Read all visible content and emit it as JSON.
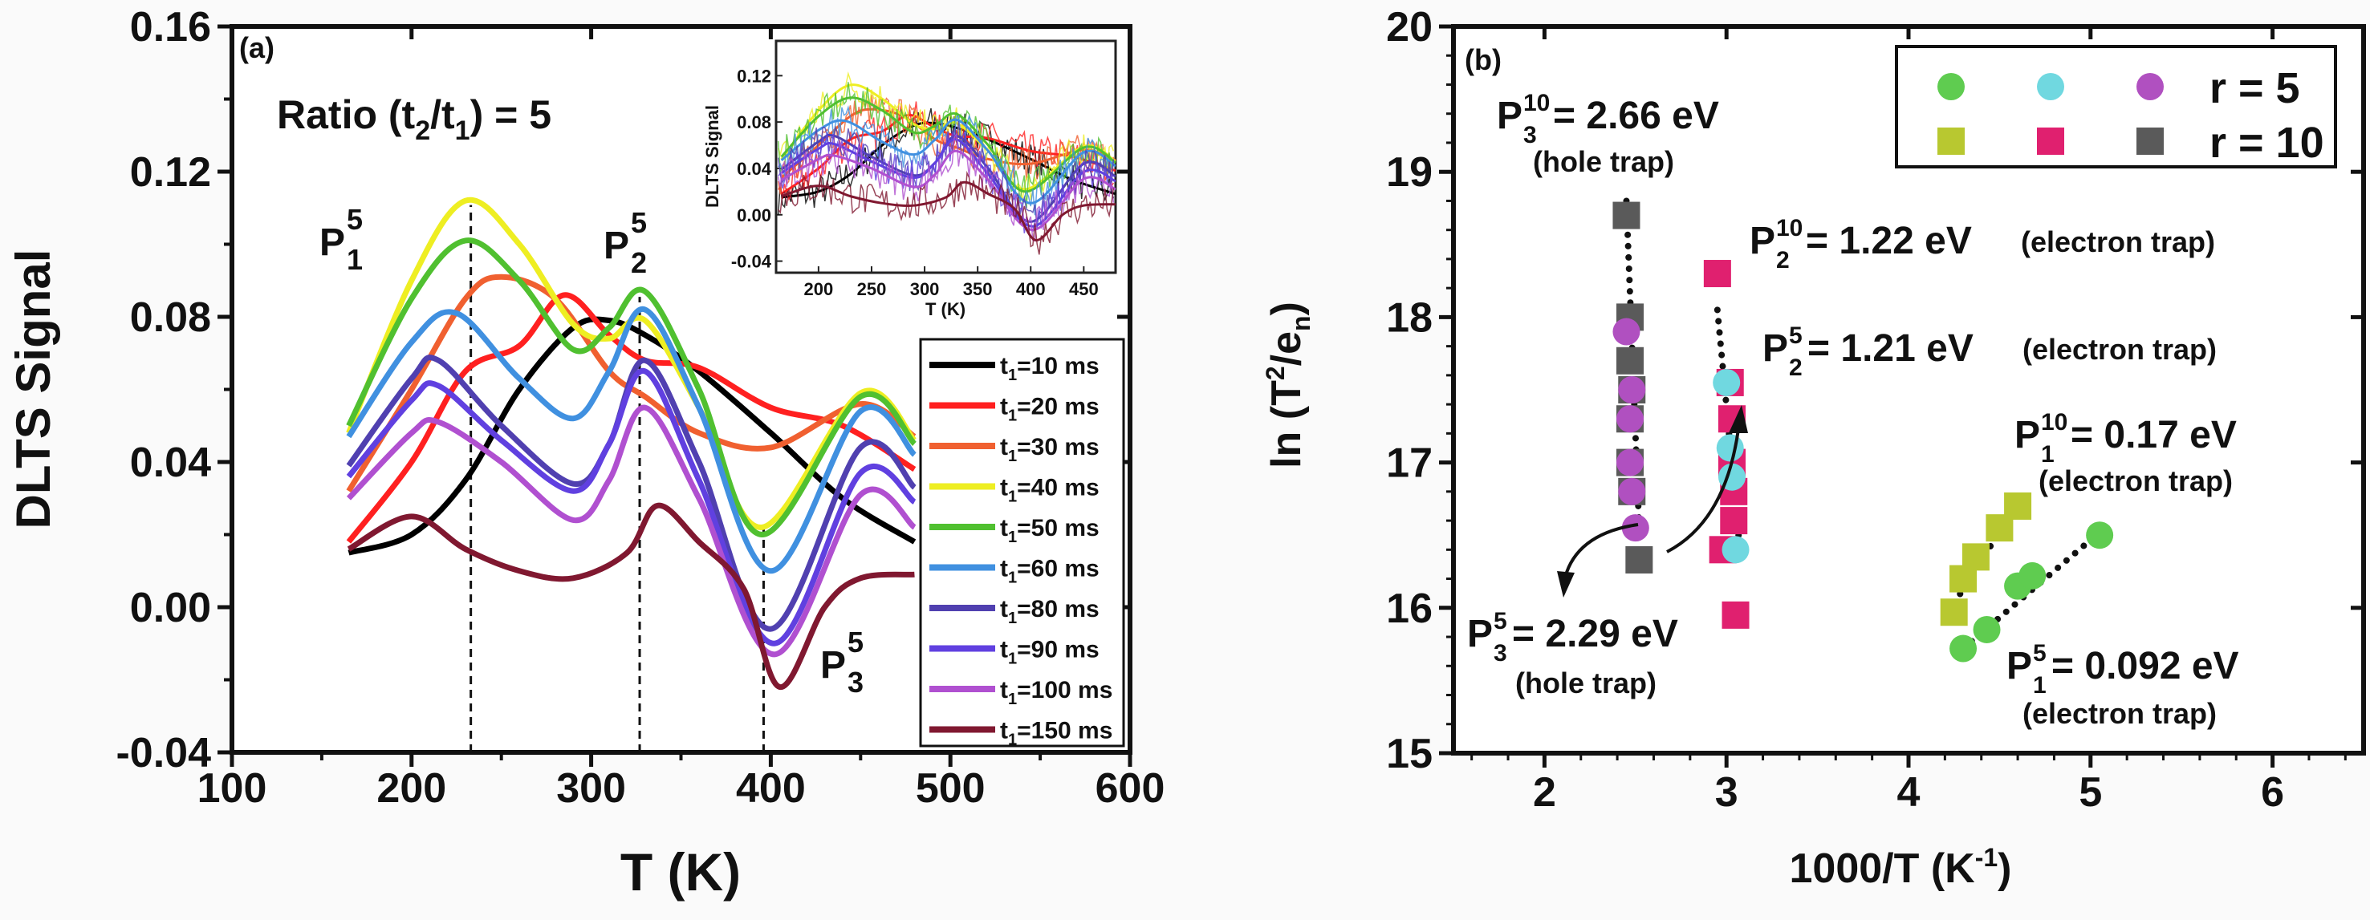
{
  "chart_data": [
    {
      "panel": "(a)",
      "type": "line",
      "xlabel": "T (K)",
      "ylabel": "DLTS Signal",
      "xlim": [
        100,
        600
      ],
      "ylim": [
        -0.04,
        0.16
      ],
      "xticks": [
        100,
        200,
        300,
        400,
        500,
        600
      ],
      "yticks": [
        "-0.04",
        "0.00",
        "0.04",
        "0.08",
        "0.12",
        "0.16"
      ],
      "annotation_ratio": {
        "prefix": "Ratio (t",
        "s1": "2",
        "mid": "/t",
        "s2": "1",
        "suffix": ") = 5"
      },
      "peak_labels": [
        {
          "base": "P",
          "sub": "1",
          "sup": "5"
        },
        {
          "base": "P",
          "sub": "2",
          "sup": "5"
        },
        {
          "base": "P",
          "sub": "3",
          "sup": "5"
        }
      ],
      "dashed_markers_T": [
        233,
        327,
        396
      ],
      "legend_position": "right",
      "series": [
        {
          "name": "t1=10 ms",
          "color": "#000000",
          "points": [
            [
              165,
              0.015
            ],
            [
              200,
              0.02
            ],
            [
              230,
              0.035
            ],
            [
              260,
              0.06
            ],
            [
              290,
              0.077
            ],
            [
              310,
              0.079
            ],
            [
              330,
              0.075
            ],
            [
              360,
              0.065
            ],
            [
              400,
              0.048
            ],
            [
              440,
              0.03
            ],
            [
              480,
              0.018
            ]
          ]
        },
        {
          "name": "t1=20 ms",
          "color": "#ff2020",
          "points": [
            [
              165,
              0.018
            ],
            [
              200,
              0.04
            ],
            [
              230,
              0.065
            ],
            [
              260,
              0.072
            ],
            [
              285,
              0.086
            ],
            [
              310,
              0.075
            ],
            [
              330,
              0.068
            ],
            [
              360,
              0.066
            ],
            [
              400,
              0.055
            ],
            [
              440,
              0.05
            ],
            [
              480,
              0.038
            ]
          ]
        },
        {
          "name": "t1=30 ms",
          "color": "#f06030",
          "points": [
            [
              165,
              0.032
            ],
            [
              200,
              0.06
            ],
            [
              230,
              0.085
            ],
            [
              250,
              0.091
            ],
            [
              280,
              0.085
            ],
            [
              310,
              0.065
            ],
            [
              330,
              0.058
            ],
            [
              360,
              0.048
            ],
            [
              400,
              0.044
            ],
            [
              450,
              0.056
            ],
            [
              480,
              0.047
            ]
          ]
        },
        {
          "name": "t1=40 ms",
          "color": "#eeee22",
          "points": [
            [
              165,
              0.048
            ],
            [
              200,
              0.09
            ],
            [
              230,
              0.112
            ],
            [
              260,
              0.1
            ],
            [
              290,
              0.078
            ],
            [
              310,
              0.074
            ],
            [
              330,
              0.079
            ],
            [
              360,
              0.055
            ],
            [
              395,
              0.022
            ],
            [
              450,
              0.059
            ],
            [
              480,
              0.046
            ]
          ]
        },
        {
          "name": "t1=50 ms",
          "color": "#50c030",
          "points": [
            [
              165,
              0.05
            ],
            [
              200,
              0.085
            ],
            [
              230,
              0.101
            ],
            [
              260,
              0.09
            ],
            [
              290,
              0.071
            ],
            [
              310,
              0.077
            ],
            [
              330,
              0.087
            ],
            [
              360,
              0.06
            ],
            [
              395,
              0.02
            ],
            [
              450,
              0.058
            ],
            [
              480,
              0.045
            ]
          ]
        },
        {
          "name": "t1=60 ms",
          "color": "#4090e0",
          "points": [
            [
              165,
              0.047
            ],
            [
              200,
              0.073
            ],
            [
              225,
              0.081
            ],
            [
              260,
              0.063
            ],
            [
              290,
              0.052
            ],
            [
              310,
              0.065
            ],
            [
              330,
              0.082
            ],
            [
              360,
              0.055
            ],
            [
              400,
              0.01
            ],
            [
              450,
              0.054
            ],
            [
              480,
              0.042
            ]
          ]
        },
        {
          "name": "t1=80 ms",
          "color": "#5040b0",
          "points": [
            [
              165,
              0.039
            ],
            [
              200,
              0.063
            ],
            [
              215,
              0.068
            ],
            [
              250,
              0.05
            ],
            [
              290,
              0.034
            ],
            [
              310,
              0.045
            ],
            [
              330,
              0.068
            ],
            [
              360,
              0.04
            ],
            [
              400,
              -0.006
            ],
            [
              450,
              0.044
            ],
            [
              480,
              0.033
            ]
          ]
        },
        {
          "name": "t1=90 ms",
          "color": "#6040e0",
          "points": [
            [
              165,
              0.036
            ],
            [
              200,
              0.057
            ],
            [
              215,
              0.061
            ],
            [
              250,
              0.046
            ],
            [
              290,
              0.032
            ],
            [
              310,
              0.045
            ],
            [
              330,
              0.065
            ],
            [
              360,
              0.035
            ],
            [
              402,
              -0.01
            ],
            [
              450,
              0.037
            ],
            [
              480,
              0.029
            ]
          ]
        },
        {
          "name": "t1=100 ms",
          "color": "#b050d0",
          "points": [
            [
              165,
              0.03
            ],
            [
              200,
              0.048
            ],
            [
              215,
              0.051
            ],
            [
              250,
              0.04
            ],
            [
              290,
              0.024
            ],
            [
              310,
              0.035
            ],
            [
              330,
              0.055
            ],
            [
              360,
              0.03
            ],
            [
              402,
              -0.013
            ],
            [
              450,
              0.031
            ],
            [
              480,
              0.022
            ]
          ]
        },
        {
          "name": "t1=150 ms",
          "color": "#801830",
          "points": [
            [
              165,
              0.016
            ],
            [
              200,
              0.025
            ],
            [
              230,
              0.016
            ],
            [
              260,
              0.01
            ],
            [
              290,
              0.008
            ],
            [
              320,
              0.015
            ],
            [
              337,
              0.028
            ],
            [
              360,
              0.018
            ],
            [
              385,
              0.005
            ],
            [
              405,
              -0.022
            ],
            [
              430,
              0.0
            ],
            [
              450,
              0.008
            ],
            [
              480,
              0.009
            ]
          ]
        }
      ],
      "inset": {
        "type": "line",
        "xlabel": "T (K)",
        "ylabel": "DLTS Signal",
        "xlim": [
          160,
          480
        ],
        "ylim": [
          -0.05,
          0.15
        ],
        "xticks": [
          200,
          250,
          300,
          350,
          400,
          450
        ],
        "yticks": [
          "-0.04",
          "0.00",
          "0.04",
          "0.08",
          "0.12"
        ]
      }
    },
    {
      "panel": "(b)",
      "type": "scatter",
      "xlabel": "1000/T (K-1)",
      "ylabel": "ln (T2/en)",
      "xlim": [
        1.5,
        6.5
      ],
      "ylim": [
        15,
        20
      ],
      "xticks": [
        2,
        3,
        4,
        5,
        6
      ],
      "yticks": [
        15,
        16,
        17,
        18,
        19,
        20
      ],
      "legend_position": "top-right",
      "legend": [
        {
          "label": "r = 5",
          "markers": [
            "#5fcc50",
            "#70d8e0",
            "#b050c0"
          ],
          "shape": "circle"
        },
        {
          "label": "r = 10",
          "markers": [
            "#b8c830",
            "#e0206f",
            "#5a5a5a"
          ],
          "shape": "square"
        }
      ],
      "series": [
        {
          "group": "r = 5",
          "peak": "P1",
          "shape": "circle",
          "color": "#5fcc50",
          "points": [
            [
              4.3,
              15.72
            ],
            [
              4.43,
              15.85
            ],
            [
              4.6,
              16.15
            ],
            [
              4.68,
              16.22
            ],
            [
              5.05,
              16.5
            ]
          ]
        },
        {
          "group": "r = 5",
          "peak": "P2",
          "shape": "circle",
          "color": "#70d8e0",
          "points": [
            [
              3.0,
              17.55
            ],
            [
              3.02,
              17.1
            ],
            [
              3.03,
              16.9
            ],
            [
              3.05,
              16.4
            ]
          ]
        },
        {
          "group": "r = 5",
          "peak": "P3",
          "shape": "circle",
          "color": "#b050c0",
          "points": [
            [
              2.5,
              16.55
            ],
            [
              2.48,
              16.8
            ],
            [
              2.47,
              17.0
            ],
            [
              2.47,
              17.3
            ],
            [
              2.48,
              17.5
            ],
            [
              2.45,
              17.9
            ]
          ]
        },
        {
          "group": "r = 10",
          "peak": "P1",
          "shape": "square",
          "color": "#b8c830",
          "points": [
            [
              4.25,
              15.97
            ],
            [
              4.3,
              16.2
            ],
            [
              4.37,
              16.35
            ],
            [
              4.5,
              16.55
            ],
            [
              4.6,
              16.7
            ]
          ]
        },
        {
          "group": "r = 10",
          "peak": "P2",
          "shape": "square",
          "color": "#e0206f",
          "points": [
            [
              2.95,
              18.3
            ],
            [
              3.02,
              17.55
            ],
            [
              3.03,
              17.3
            ],
            [
              3.03,
              17.0
            ],
            [
              3.04,
              16.8
            ],
            [
              3.04,
              16.6
            ],
            [
              2.98,
              16.4
            ],
            [
              3.05,
              15.95
            ]
          ]
        },
        {
          "group": "r = 10",
          "peak": "P3",
          "shape": "square",
          "color": "#5a5a5a",
          "points": [
            [
              2.45,
              18.7
            ],
            [
              2.47,
              18.0
            ],
            [
              2.47,
              17.7
            ],
            [
              2.48,
              17.5
            ],
            [
              2.47,
              17.3
            ],
            [
              2.47,
              17.0
            ],
            [
              2.48,
              16.8
            ],
            [
              2.52,
              16.33
            ]
          ]
        }
      ],
      "fits": [
        {
          "from": [
            2.45,
            18.8
          ],
          "to": [
            2.52,
            16.55
          ]
        },
        {
          "from": [
            2.95,
            18.05
          ],
          "to": [
            3.07,
            16.45
          ]
        },
        {
          "from": [
            4.25,
            16.03
          ],
          "to": [
            4.6,
            16.72
          ]
        },
        {
          "from": [
            4.3,
            15.72
          ],
          "to": [
            5.05,
            16.52
          ]
        }
      ],
      "annotations": [
        {
          "base": "P",
          "sub": "3",
          "sup": "10",
          "value": " = 2.66 eV",
          "note": "(hole trap)"
        },
        {
          "base": "P",
          "sub": "2",
          "sup": "10",
          "value": " = 1.22 eV",
          "note": "(electron trap)"
        },
        {
          "base": "P",
          "sub": "2",
          "sup": "5",
          "value": " = 1.21 eV",
          "note": "(electron trap)"
        },
        {
          "base": "P",
          "sub": "1",
          "sup": "10",
          "value": " = 0.17 eV",
          "note": "(electron trap)"
        },
        {
          "base": "P",
          "sub": "3",
          "sup": "5",
          "value": " = 2.29 eV",
          "note": "(hole trap)"
        },
        {
          "base": "P",
          "sub": "1",
          "sup": "5",
          "value": " = 0.092 eV",
          "note": "(electron trap)"
        }
      ],
      "axis_label_parts": {
        "x_main": "1000/T (K",
        "x_sup": "-1",
        "x_end": ")",
        "y_main": "ln (T",
        "y_sup": "2",
        "y_mid": "/e",
        "y_sub": "n",
        "y_end": ")"
      }
    }
  ]
}
